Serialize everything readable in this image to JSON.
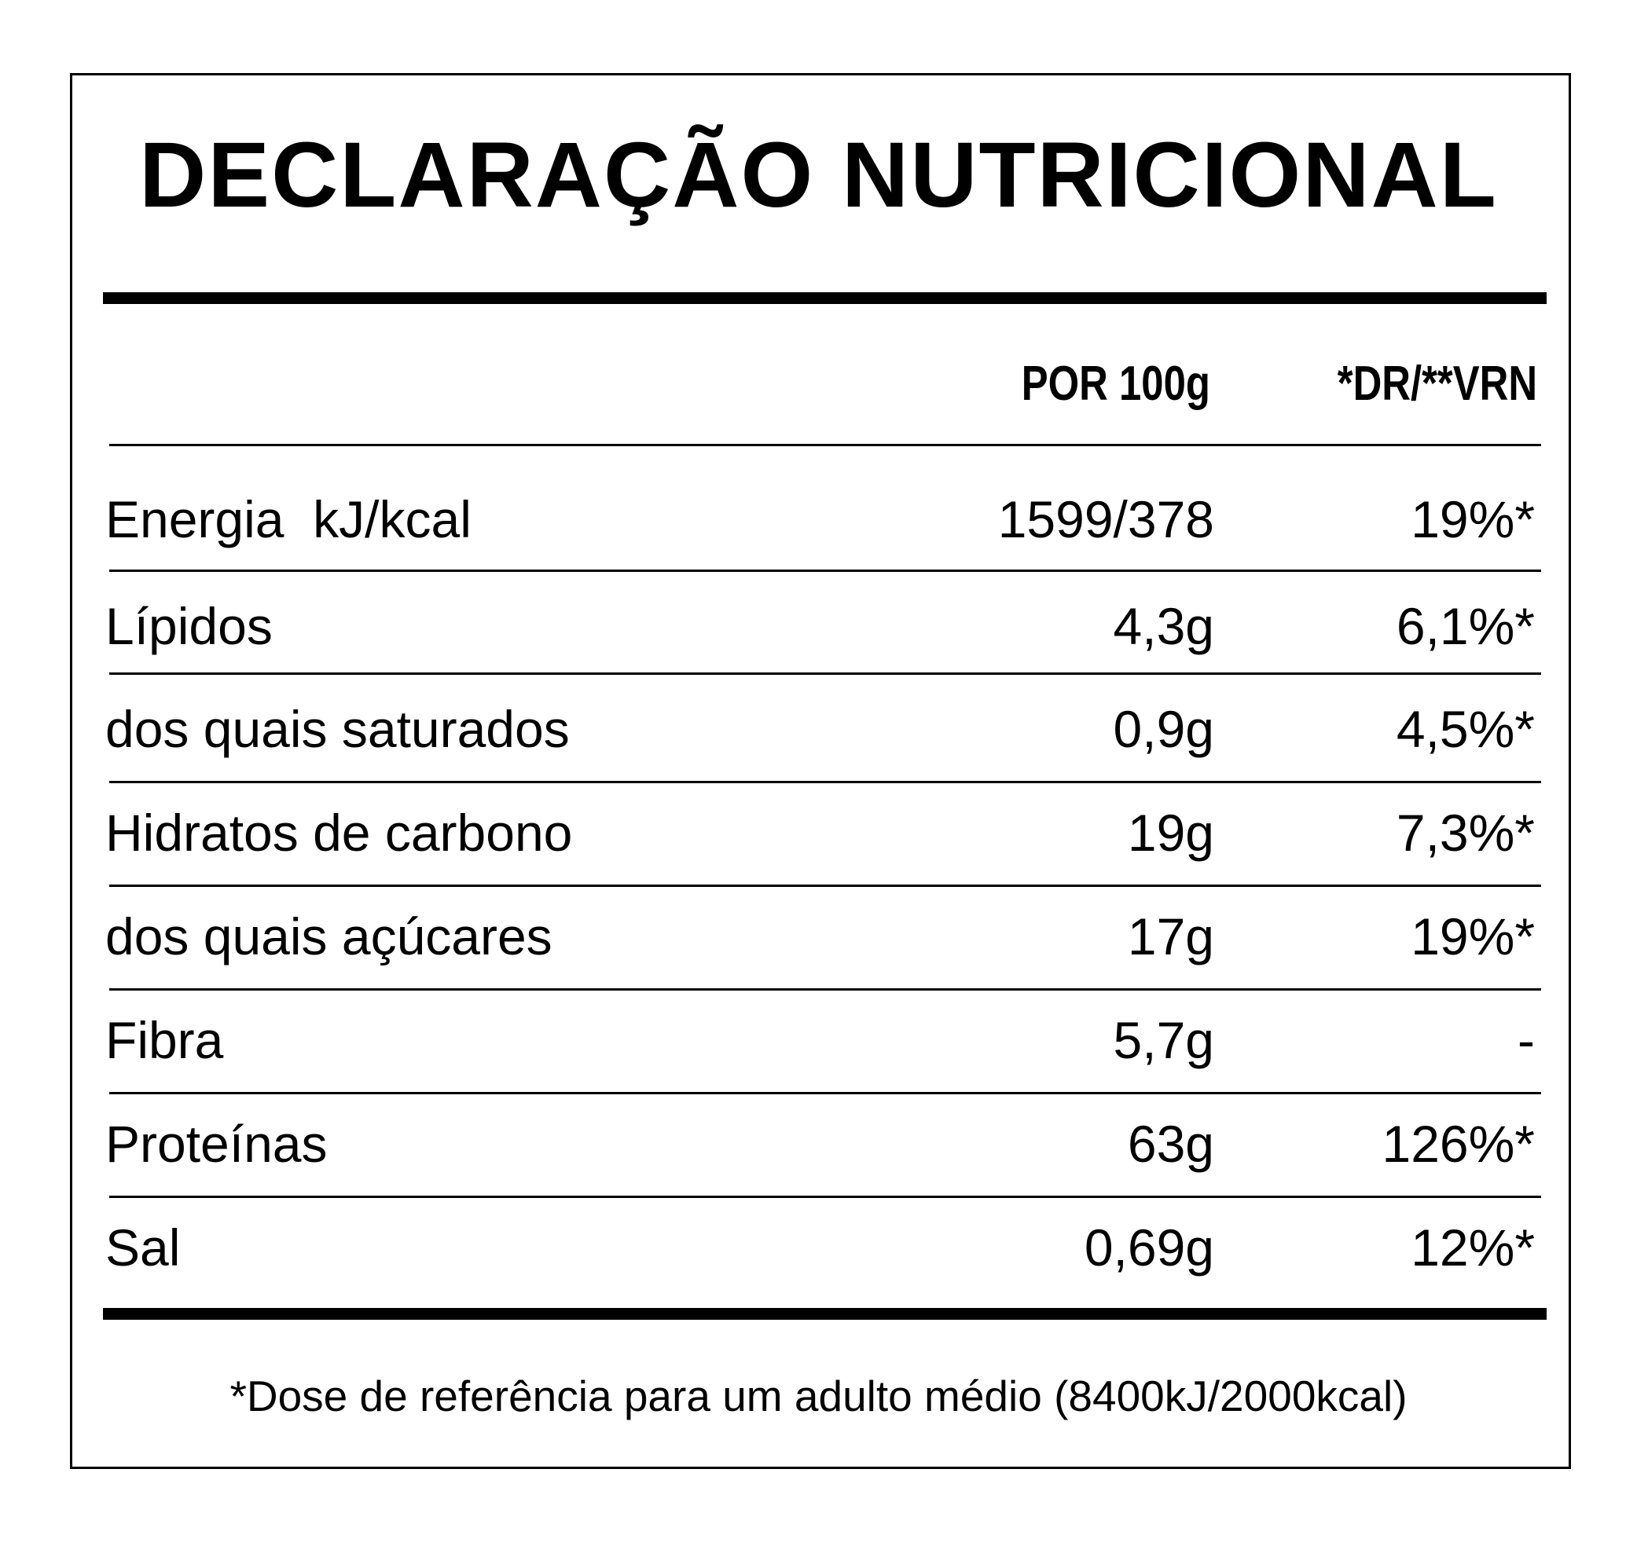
{
  "title": "DECLARAÇÃO NUTRICIONAL",
  "headers": {
    "per_100g": "POR 100g",
    "dr_vrn": "*DR/**VRN"
  },
  "rows": [
    {
      "name": "Energia  kJ/kcal",
      "value": "1599/378",
      "dr": "19%*"
    },
    {
      "name": "Lípidos",
      "value": "4,3g",
      "dr": "6,1%*"
    },
    {
      "name": "dos quais saturados",
      "value": "0,9g",
      "dr": "4,5%*"
    },
    {
      "name": "Hidratos de carbono",
      "value": "19g",
      "dr": "7,3%*"
    },
    {
      "name": "dos quais açúcares",
      "value": "17g",
      "dr": "19%*"
    },
    {
      "name": "Fibra",
      "value": "5,7g",
      "dr": "-"
    },
    {
      "name": "Proteínas",
      "value": "63g",
      "dr": "126%*"
    },
    {
      "name": "Sal",
      "value": "0,69g",
      "dr": "12%*"
    }
  ],
  "footnote": "*Dose de referência para um adulto médio (8400kJ/2000kcal)"
}
